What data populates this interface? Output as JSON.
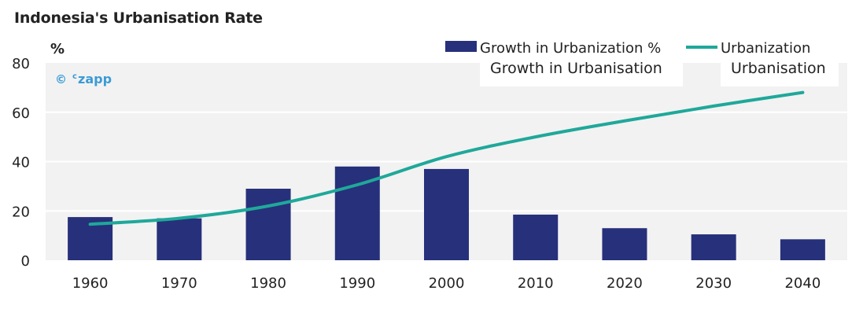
{
  "chart_data": {
    "type": "bar",
    "title": "Indonesia's Urbanisation Rate",
    "ylabel": "%",
    "categories": [
      "1960",
      "1970",
      "1980",
      "1990",
      "2000",
      "2010",
      "2020",
      "2030",
      "2040"
    ],
    "ylim": [
      0,
      80
    ],
    "yticks": [
      0,
      20,
      40,
      60,
      80
    ],
    "grid": true,
    "legend_position": "top-right",
    "series": [
      {
        "name": "Growth in Urbanization %",
        "type": "bar",
        "color": "#27307a",
        "values": [
          17.5,
          17,
          29,
          38,
          37,
          18.5,
          13,
          10.5,
          8.5
        ]
      },
      {
        "name": "Urbanization",
        "type": "line",
        "color": "#1fa89a",
        "values": [
          14.6,
          17,
          22,
          30.6,
          42,
          50,
          56.5,
          62.5,
          68
        ]
      }
    ],
    "overlay_labels": [
      "Growth in Urbanisation",
      "Urbanisation"
    ]
  },
  "watermark": {
    "symbol": "©",
    "superscript": "c",
    "brand": "zapp"
  },
  "colors": {
    "plot_bg": "#f2f2f2",
    "grid": "#ffffff",
    "text": "#222222",
    "watermark": "#3a9bd5"
  }
}
